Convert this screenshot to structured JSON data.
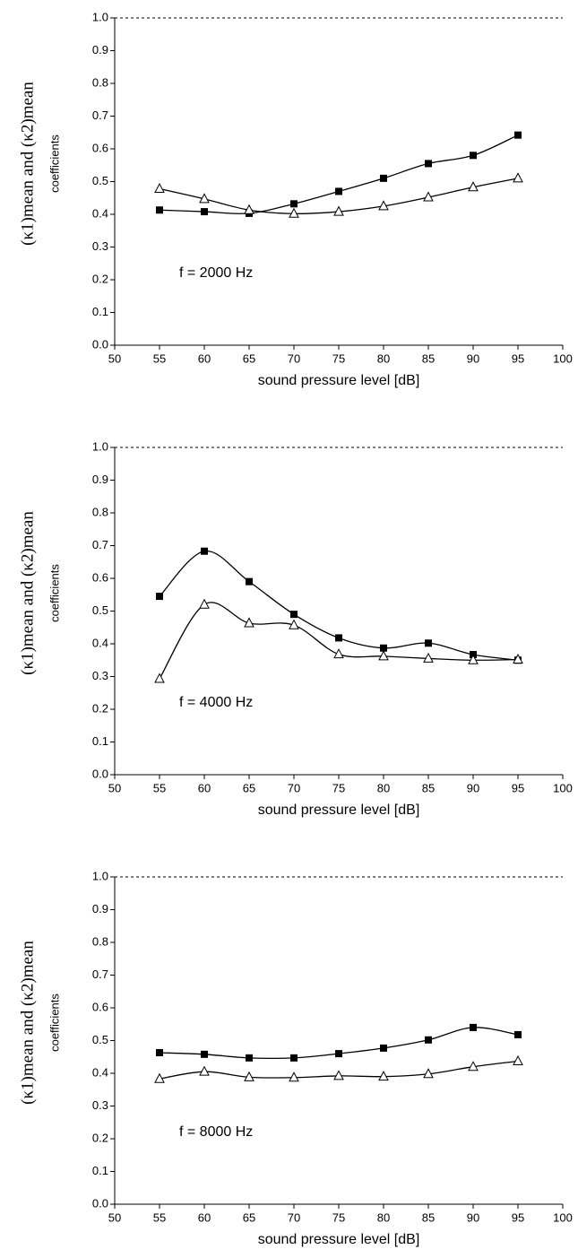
{
  "chart_data": [
    {
      "type": "line",
      "xlabel": "sound pressure level  [dB]",
      "ylabel": "(κ1)mean and (κ2)mean",
      "ylabel2": "coefficients",
      "annotation": "f = 2000 Hz",
      "x": [
        55,
        60,
        65,
        70,
        75,
        80,
        85,
        90,
        95
      ],
      "series": [
        {
          "color": "#000000",
          "marker": "square",
          "values": [
            0.413,
            0.408,
            0.403,
            0.432,
            0.47,
            0.51,
            0.555,
            0.58,
            0.642
          ]
        },
        {
          "color": "#000000",
          "marker": "triangle",
          "values": [
            0.478,
            0.447,
            0.413,
            0.402,
            0.408,
            0.425,
            0.452,
            0.483,
            0.51
          ]
        }
      ],
      "xlim": [
        50,
        100
      ],
      "ylim": [
        0,
        1
      ],
      "xticks": [
        50,
        55,
        60,
        65,
        70,
        75,
        80,
        85,
        90,
        95,
        100
      ],
      "yticks": [
        {
          "value": 0,
          "label": "0.0"
        },
        0.1,
        0.2,
        0.3,
        0.4,
        0.5,
        0.6,
        0.7,
        0.8,
        0.9,
        {
          "value": 1,
          "label": "1.0"
        }
      ],
      "top_border": "dashed"
    },
    {
      "type": "line",
      "xlabel": "sound pressure level  [dB]",
      "ylabel": "(κ1)mean and (κ2)mean",
      "ylabel2": "coefficients",
      "annotation": "f = 4000 Hz",
      "x": [
        55,
        60,
        65,
        70,
        75,
        80,
        85,
        90,
        95
      ],
      "series": [
        {
          "color": "#000000",
          "marker": "square",
          "values": [
            0.545,
            0.683,
            0.59,
            0.49,
            0.418,
            0.387,
            0.402,
            0.367,
            0.35
          ]
        },
        {
          "color": "#000000",
          "marker": "triangle",
          "values": [
            0.293,
            0.52,
            0.463,
            0.457,
            0.368,
            0.362,
            0.355,
            0.35,
            0.352
          ]
        }
      ],
      "xlim": [
        50,
        100
      ],
      "ylim": [
        0,
        1
      ],
      "xticks": [
        50,
        55,
        60,
        65,
        70,
        75,
        80,
        85,
        90,
        95,
        100
      ],
      "yticks": [
        {
          "value": 0,
          "label": "0.0"
        },
        0.1,
        0.2,
        0.3,
        0.4,
        0.5,
        0.6,
        0.7,
        0.8,
        0.9,
        {
          "value": 1,
          "label": "1.0"
        }
      ],
      "top_border": "dashed"
    },
    {
      "type": "line",
      "xlabel": "sound pressure level  [dB]",
      "ylabel": "(κ1)mean and (κ2)mean",
      "ylabel2": "coefficients",
      "annotation": "f = 8000 Hz",
      "x": [
        55,
        60,
        65,
        70,
        75,
        80,
        85,
        90,
        95
      ],
      "series": [
        {
          "color": "#000000",
          "marker": "square",
          "values": [
            0.463,
            0.458,
            0.447,
            0.447,
            0.46,
            0.477,
            0.502,
            0.54,
            0.518
          ]
        },
        {
          "color": "#000000",
          "marker": "triangle",
          "values": [
            0.383,
            0.405,
            0.388,
            0.387,
            0.392,
            0.39,
            0.398,
            0.42,
            0.437
          ]
        }
      ],
      "xlim": [
        50,
        100
      ],
      "ylim": [
        0,
        1
      ],
      "xticks": [
        50,
        55,
        60,
        65,
        70,
        75,
        80,
        85,
        90,
        95,
        100
      ],
      "yticks": [
        {
          "value": 0,
          "label": "0.0"
        },
        0.1,
        0.2,
        0.3,
        0.4,
        0.5,
        0.6,
        0.7,
        0.8,
        0.9,
        {
          "value": 1,
          "label": "1.0"
        }
      ],
      "top_border": "dashed"
    }
  ]
}
